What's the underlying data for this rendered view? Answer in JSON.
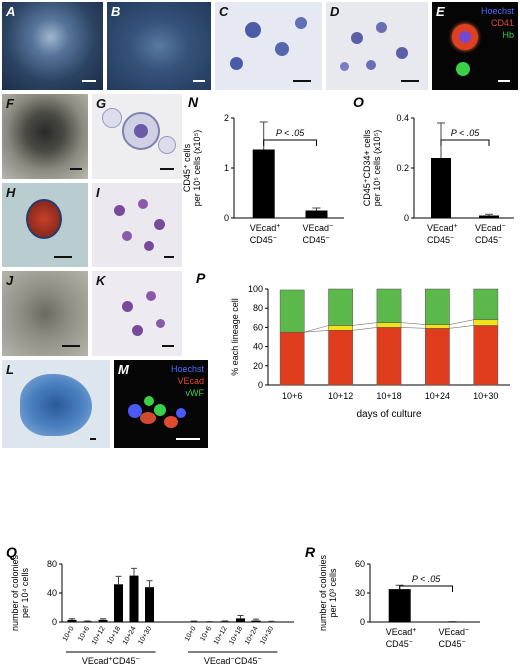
{
  "panels": {
    "A": "A",
    "B": "B",
    "C": "C",
    "D": "D",
    "E": "E",
    "F": "F",
    "G": "G",
    "H": "H",
    "I": "I",
    "J": "J",
    "K": "K",
    "L": "L",
    "M": "M",
    "N": "N",
    "O": "O",
    "P": "P",
    "Q": "Q",
    "R": "R"
  },
  "panel_E_legend": [
    "Hoechst",
    "CD41",
    "Hb"
  ],
  "panel_M_legend": [
    "Hoechst",
    "VEcad",
    "vWF"
  ],
  "colors": {
    "hoechst": "#4a6cff",
    "cd41": "#e64a2e",
    "hb": "#3ad04a",
    "vecad": "#e64a2e",
    "vwf": "#3ad04a",
    "bar": "#000000",
    "erythroid": "#e03c1e",
    "yellow": "#f2e21a",
    "green": "#5cb84a"
  },
  "chart_data": [
    {
      "id": "N",
      "type": "bar",
      "categories": [
        [
          "VEcad+",
          "CD45−"
        ],
        [
          "VEcad−",
          "CD45−"
        ]
      ],
      "values": [
        1.37,
        0.15
      ],
      "errors": [
        0.55,
        0.05
      ],
      "ylabel": [
        "CD45+ cells",
        "per 10^5 cells (x10^5)"
      ],
      "ylim": [
        0,
        2
      ],
      "yticks": [
        "0",
        "1",
        "2"
      ],
      "annotation": "P < .05"
    },
    {
      "id": "O",
      "type": "bar",
      "categories": [
        [
          "VEcad+",
          "CD45−"
        ],
        [
          "VEcad−",
          "CD45−"
        ]
      ],
      "values": [
        0.24,
        0.01
      ],
      "errors": [
        0.14,
        0.005
      ],
      "ylabel": [
        "CD45+CD34+ cells",
        "per 10^5 cells (x10^5)"
      ],
      "ylim": [
        0,
        0.4
      ],
      "yticks": [
        "0",
        "0.2",
        "0.4"
      ],
      "annotation": "P < .05"
    },
    {
      "id": "P",
      "type": "bar",
      "stacked": true,
      "categories": [
        "10+6",
        "10+12",
        "10+18",
        "10+24",
        "10+30"
      ],
      "series": [
        {
          "values": [
            55,
            57,
            60,
            59,
            62
          ],
          "color": "#e03c1e"
        },
        {
          "values": [
            0,
            5,
            5,
            4,
            6
          ],
          "color": "#f2e21a"
        },
        {
          "values": [
            44,
            38,
            35,
            37,
            32
          ],
          "color": "#5cb84a"
        }
      ],
      "xlabel": "days of culture",
      "ylabel": "% each lineage cell",
      "ylim": [
        0,
        100
      ],
      "yticks": [
        "0",
        "20",
        "40",
        "60",
        "80",
        "100"
      ]
    },
    {
      "id": "Q",
      "type": "bar",
      "groups": [
        "VEcad+CD45−",
        "VEcad−CD45−"
      ],
      "categories": [
        "10+0",
        "10+6",
        "10+12",
        "10+18",
        "10+24",
        "10+30",
        "10+0",
        "10+6",
        "10+12",
        "10+18",
        "10+24",
        "10+30"
      ],
      "values": [
        3,
        1,
        3,
        52,
        64,
        48,
        0.8,
        0.4,
        1,
        5,
        2,
        0.5
      ],
      "errors": [
        1.5,
        0.5,
        1.5,
        11,
        10,
        9,
        0.5,
        0.3,
        0.5,
        4,
        2,
        0.5
      ],
      "ylabel": [
        "number of colonies",
        "per 10^4 cells"
      ],
      "ylim": [
        0,
        80
      ],
      "yticks": [
        "0",
        "40",
        "80"
      ]
    },
    {
      "id": "R",
      "type": "bar",
      "categories": [
        [
          "VEcad+",
          "CD45−"
        ],
        [
          "VEcad−",
          "CD45−"
        ]
      ],
      "values": [
        34,
        0.3
      ],
      "errors": [
        4,
        0.2
      ],
      "ylabel": [
        "number of colonies",
        "per 10^3 cells"
      ],
      "ylim": [
        0,
        60
      ],
      "yticks": [
        "0",
        "30",
        "60"
      ],
      "annotation": "P < .05"
    }
  ]
}
